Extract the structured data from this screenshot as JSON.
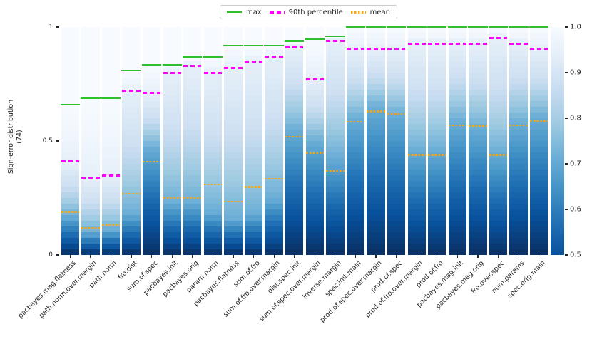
{
  "chart_data": {
    "type": "bar",
    "subtype": "stacked-sign-error-distribution",
    "title": "",
    "ylabel": "Sign-error distribution",
    "ylabel_sub": "(74)",
    "xlabel": "",
    "ylim": [
      0,
      1
    ],
    "yticks": [
      {
        "label": "1",
        "value": 1.0
      },
      {
        "label": "0.5",
        "value": 0.5
      },
      {
        "label": "0",
        "value": 0.0
      }
    ],
    "grid": false,
    "legend_position": "top-center",
    "categories": [
      "pacbayes.mag.flatness",
      "path.norm.over.margin",
      "path.norm",
      "fro.dist",
      "sum.of.spec",
      "pacbayes.init",
      "pacbayes.orig",
      "param.norm",
      "pacbayes.flatness",
      "sum.of.fro",
      "sum.of.fro.over.margin",
      "dist.spec.init",
      "sum.of.spec.over.margin",
      "inverse.margin",
      "spec.init.main",
      "prod.of.spec.over.margin",
      "prod.of.spec",
      "prod.of.fro.over.margin",
      "prod.of.fro",
      "pacbayes.mag.init",
      "pacbayes.mag.orig",
      "fro.over.spec",
      "num.params",
      "spec.orig.main"
    ],
    "series": [
      {
        "name": "max",
        "style": "solid",
        "color": "#2fbf2f",
        "values": [
          0.66,
          0.69,
          0.69,
          0.81,
          0.835,
          0.835,
          0.87,
          0.87,
          0.92,
          0.92,
          0.92,
          0.94,
          0.95,
          0.96,
          1.0,
          1.0,
          1.0,
          1.0,
          1.0,
          1.0,
          1.0,
          1.0,
          1.0,
          1.0
        ]
      },
      {
        "name": "90th percentile",
        "style": "dashed",
        "color": "#ff00ff",
        "values": [
          0.41,
          0.34,
          0.35,
          0.72,
          0.71,
          0.8,
          0.83,
          0.8,
          0.82,
          0.85,
          0.87,
          0.91,
          0.77,
          0.94,
          0.905,
          0.905,
          0.905,
          0.928,
          0.928,
          0.928,
          0.928,
          0.953,
          0.928,
          0.904
        ]
      },
      {
        "name": "mean",
        "style": "dotted",
        "color": "#ffa500",
        "values": [
          0.19,
          0.12,
          0.13,
          0.27,
          0.41,
          0.25,
          0.25,
          0.31,
          0.235,
          0.3,
          0.335,
          0.52,
          0.45,
          0.37,
          0.585,
          0.63,
          0.62,
          0.44,
          0.44,
          0.57,
          0.565,
          0.44,
          0.57,
          0.59
        ]
      },
      {
        "name": "median_color_profile",
        "style": "gradient-anchor",
        "color": "#6baed6",
        "values": [
          0.17,
          0.1,
          0.11,
          0.18,
          0.47,
          0.23,
          0.23,
          0.19,
          0.16,
          0.18,
          0.25,
          0.55,
          0.5,
          0.43,
          0.6,
          0.65,
          0.62,
          0.46,
          0.46,
          0.59,
          0.56,
          0.45,
          0.58,
          0.61
        ]
      }
    ],
    "colorbar": {
      "min": 0.5,
      "max": 1.0,
      "dark_color": "#08519c",
      "darkest_bar_color": "#0a2f62",
      "light_color": "#f7fbff",
      "ticks": [
        {
          "label": "1.0",
          "value": 1.0
        },
        {
          "label": "0.9",
          "value": 0.9
        },
        {
          "label": "0.8",
          "value": 0.8
        },
        {
          "label": "0.7",
          "value": 0.7
        },
        {
          "label": "0.6",
          "value": 0.6
        },
        {
          "label": "0.5",
          "value": 0.5
        }
      ]
    }
  },
  "legend": {
    "items": [
      {
        "label": "max",
        "color": "#2fbf2f",
        "style": "solid"
      },
      {
        "label": "90th percentile",
        "color": "#ff00ff",
        "style": "dashed"
      },
      {
        "label": "mean",
        "color": "#ffa500",
        "style": "dotted"
      }
    ]
  }
}
